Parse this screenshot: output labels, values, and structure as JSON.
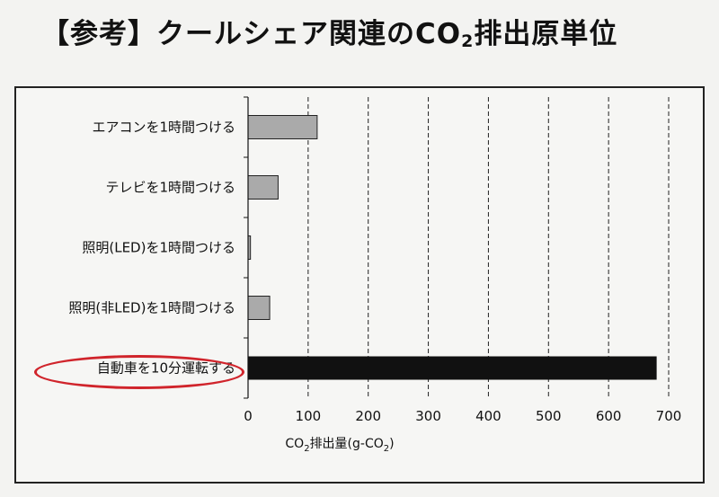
{
  "title": {
    "prefix": "【参考】クールシェア関連のCO",
    "sub": "2",
    "suffix": "排出原単位"
  },
  "chart_data": {
    "type": "bar",
    "orientation": "horizontal",
    "categories": [
      "エアコンを1時間つける",
      "テレビを1時間つける",
      "照明(LED)を1時間つける",
      "照明(非LED)を1時間つける",
      "自動車を10分運転する"
    ],
    "values": [
      115,
      50,
      4,
      36,
      680
    ],
    "bar_colors": [
      "#aaaaaa",
      "#aaaaaa",
      "#aaaaaa",
      "#aaaaaa",
      "#111111"
    ],
    "xlim": [
      0,
      700
    ],
    "xticks": [
      "0",
      "100",
      "200",
      "300",
      "400",
      "500",
      "600",
      "700"
    ],
    "xlabel": {
      "part1": "CO",
      "sub1": "2",
      "part2": "排出量(g-CO",
      "sub2": "2",
      "part3": ")"
    },
    "grid": "vertical-dashed",
    "highlighted_category": "自動車を10分運転する",
    "highlight_color": "#d0242b"
  }
}
